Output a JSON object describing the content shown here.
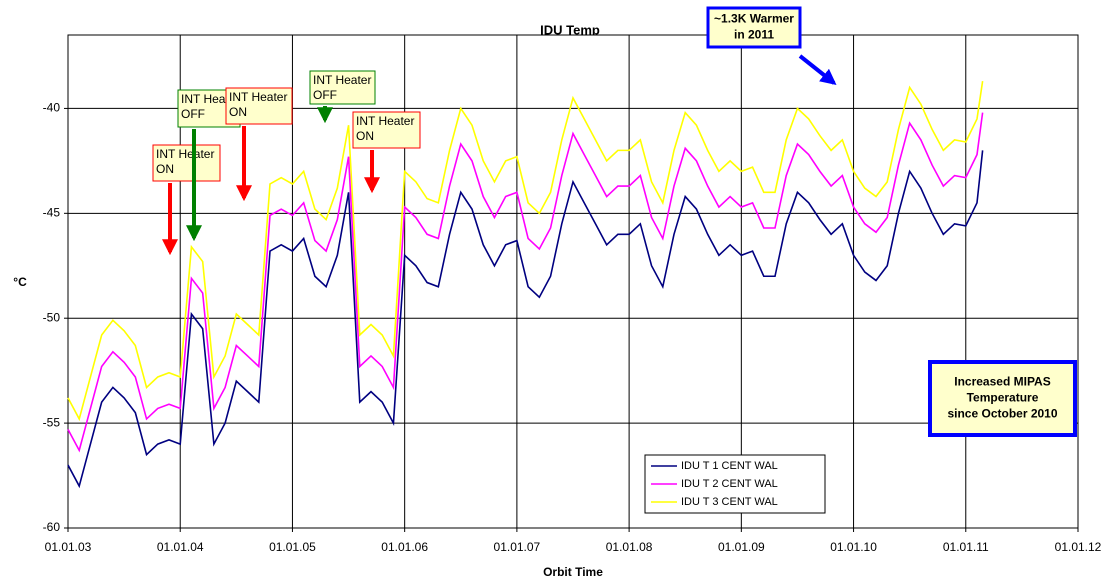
{
  "chart_data": {
    "type": "line",
    "title": "IDU Temp",
    "x_label": "Orbit Time",
    "y_label": "°C",
    "x": [
      2003.0,
      2003.1,
      2003.2,
      2003.3,
      2003.4,
      2003.5,
      2003.6,
      2003.7,
      2003.8,
      2003.9,
      2004.0,
      2004.1,
      2004.2,
      2004.3,
      2004.4,
      2004.5,
      2004.6,
      2004.7,
      2004.8,
      2004.9,
      2005.0,
      2005.1,
      2005.2,
      2005.3,
      2005.4,
      2005.5,
      2005.6,
      2005.7,
      2005.8,
      2005.9,
      2006.0,
      2006.1,
      2006.2,
      2006.3,
      2006.4,
      2006.5,
      2006.6,
      2006.7,
      2006.8,
      2006.9,
      2007.0,
      2007.1,
      2007.2,
      2007.3,
      2007.4,
      2007.5,
      2007.6,
      2007.7,
      2007.8,
      2007.9,
      2008.0,
      2008.1,
      2008.2,
      2008.3,
      2008.4,
      2008.5,
      2008.6,
      2008.7,
      2008.8,
      2008.9,
      2009.0,
      2009.1,
      2009.2,
      2009.3,
      2009.4,
      2009.5,
      2009.6,
      2009.7,
      2009.8,
      2009.9,
      2010.0,
      2010.1,
      2010.2,
      2010.3,
      2010.4,
      2010.5,
      2010.6,
      2010.7,
      2010.8,
      2010.9,
      2011.0,
      2011.1,
      2011.15
    ],
    "series": [
      {
        "name": "IDU T 1 CENT WAL",
        "color": "#000080",
        "values": [
          -57,
          -58,
          -56,
          -54,
          -53.3,
          -53.8,
          -54.5,
          -56.5,
          -56,
          -55.8,
          -56,
          -49.8,
          -50.5,
          -56,
          -55,
          -53,
          -53.5,
          -54,
          -46.8,
          -46.5,
          -46.8,
          -46.2,
          -48,
          -48.5,
          -47,
          -44,
          -54,
          -53.5,
          -54,
          -55,
          -47,
          -47.5,
          -48.3,
          -48.5,
          -46,
          -44,
          -44.8,
          -46.5,
          -47.5,
          -46.5,
          -46.3,
          -48.5,
          -49,
          -48,
          -45.5,
          -43.5,
          -44.5,
          -45.5,
          -46.5,
          -46,
          -46,
          -45.5,
          -47.5,
          -48.5,
          -46,
          -44.2,
          -44.8,
          -46,
          -47,
          -46.5,
          -47,
          -46.8,
          -48,
          -48,
          -45.5,
          -44,
          -44.5,
          -45.3,
          -46,
          -45.5,
          -47,
          -47.8,
          -48.2,
          -47.5,
          -45,
          -43,
          -43.8,
          -45,
          -46,
          -45.5,
          -45.6,
          -44.5,
          -42
        ]
      },
      {
        "name": "IDU T 2 CENT WAL",
        "color": "#ff00ff",
        "values": [
          -55.3,
          -56.3,
          -54.3,
          -52.3,
          -51.6,
          -52.1,
          -52.8,
          -54.8,
          -54.3,
          -54.1,
          -54.3,
          -48.1,
          -48.8,
          -54.3,
          -53.3,
          -51.3,
          -51.8,
          -52.3,
          -45.1,
          -44.8,
          -45.1,
          -44.5,
          -46.3,
          -46.8,
          -45.3,
          -42.3,
          -52.3,
          -51.8,
          -52.3,
          -53.3,
          -44.7,
          -45.2,
          -46,
          -46.2,
          -43.7,
          -41.7,
          -42.5,
          -44.2,
          -45.2,
          -44.2,
          -44,
          -46.2,
          -46.7,
          -45.7,
          -43.2,
          -41.2,
          -42.2,
          -43.2,
          -44.2,
          -43.7,
          -43.7,
          -43.2,
          -45.2,
          -46.2,
          -43.7,
          -41.9,
          -42.5,
          -43.7,
          -44.7,
          -44.2,
          -44.7,
          -44.5,
          -45.7,
          -45.7,
          -43.2,
          -41.7,
          -42.2,
          -43,
          -43.7,
          -43.2,
          -44.7,
          -45.5,
          -45.9,
          -45.2,
          -42.7,
          -40.7,
          -41.5,
          -42.7,
          -43.7,
          -43.2,
          -43.3,
          -42.2,
          -40.2
        ]
      },
      {
        "name": "IDU T 3 CENT WAL",
        "color": "#ffff00",
        "values": [
          -53.8,
          -54.8,
          -52.8,
          -50.8,
          -50.1,
          -50.6,
          -51.3,
          -53.3,
          -52.8,
          -52.6,
          -52.8,
          -46.6,
          -47.3,
          -52.8,
          -51.8,
          -49.8,
          -50.3,
          -50.8,
          -43.6,
          -43.3,
          -43.6,
          -43,
          -44.8,
          -45.3,
          -43.8,
          -40.8,
          -50.8,
          -50.3,
          -50.8,
          -51.8,
          -43,
          -43.5,
          -44.3,
          -44.5,
          -42,
          -40,
          -40.8,
          -42.5,
          -43.5,
          -42.5,
          -42.3,
          -44.5,
          -45,
          -44,
          -41.5,
          -39.5,
          -40.5,
          -41.5,
          -42.5,
          -42,
          -42,
          -41.5,
          -43.5,
          -44.5,
          -42,
          -40.2,
          -40.8,
          -42,
          -43,
          -42.5,
          -43,
          -42.8,
          -44,
          -44,
          -41.5,
          -40,
          -40.5,
          -41.3,
          -42,
          -41.5,
          -43,
          -43.8,
          -44.2,
          -43.5,
          -41,
          -39,
          -39.8,
          -41,
          -42,
          -41.5,
          -41.6,
          -40.5,
          -38.7
        ]
      }
    ],
    "xlim": [
      2003,
      2012
    ],
    "xticks": [
      {
        "value": 2003,
        "label": "01.01.03"
      },
      {
        "value": 2004,
        "label": "01.01.04"
      },
      {
        "value": 2005,
        "label": "01.01.05"
      },
      {
        "value": 2006,
        "label": "01.01.06"
      },
      {
        "value": 2007,
        "label": "01.01.07"
      },
      {
        "value": 2008,
        "label": "01.01.08"
      },
      {
        "value": 2009,
        "label": "01.01.09"
      },
      {
        "value": 2010,
        "label": "01.01.10"
      },
      {
        "value": 2011,
        "label": "01.01.11"
      },
      {
        "value": 2012,
        "label": "01.01.12"
      }
    ],
    "ylim": [
      -60,
      -36.5
    ],
    "yticks": [
      -60,
      -55,
      -50,
      -45,
      -40
    ],
    "grid": true,
    "legend": "lower right",
    "annotations": [
      {
        "lines": [
          "INT Heater",
          "ON"
        ]
      },
      {
        "lines": [
          "INT Heater",
          "OFF"
        ]
      },
      {
        "lines": [
          "INT Heater",
          "ON"
        ]
      },
      {
        "lines": [
          "INT Heater",
          "OFF"
        ]
      },
      {
        "lines": [
          "INT Heater",
          "ON"
        ]
      },
      {
        "lines": [
          "~1.3K Warmer",
          "in 2011"
        ]
      },
      {
        "lines": [
          "Increased MIPAS",
          "Temperature",
          "since October 2010"
        ]
      }
    ]
  }
}
